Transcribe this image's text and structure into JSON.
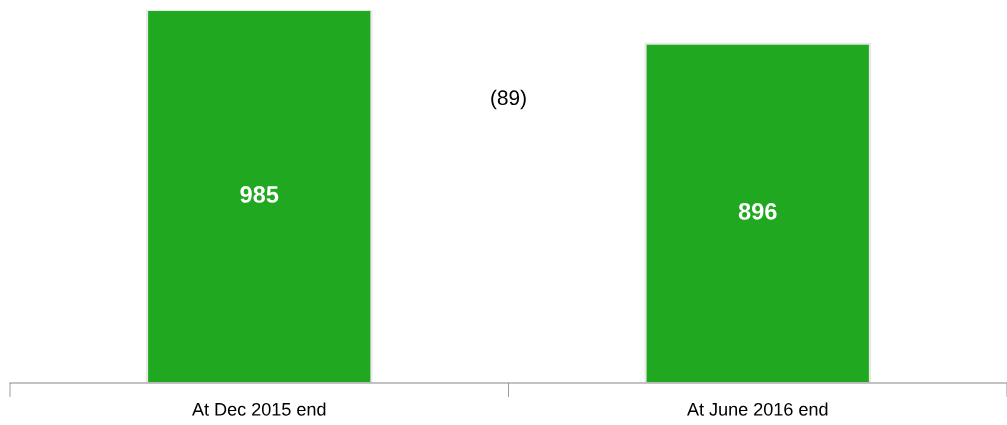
{
  "chart_data": {
    "type": "bar",
    "categories": [
      "At Dec 2015 end",
      "At June 2016 end"
    ],
    "values": [
      985,
      896
    ],
    "color": "#21a821",
    "ylim": [
      0,
      985
    ],
    "data_labels": true,
    "annotations": [
      "(89)"
    ],
    "grid": false
  }
}
